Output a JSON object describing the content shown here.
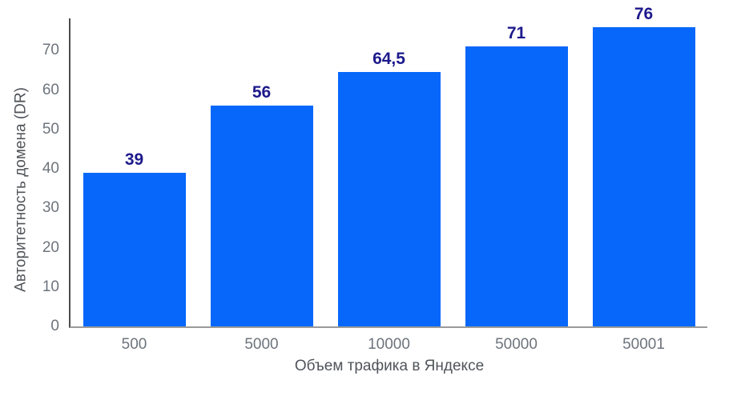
{
  "chart_data": {
    "type": "bar",
    "title": "",
    "xlabel": "Объем трафика в Яндексе",
    "ylabel": "Авторитетность домена (DR)",
    "categories": [
      "500",
      "5000",
      "10000",
      "50000",
      "50001"
    ],
    "values": [
      39,
      56,
      64.5,
      71,
      76
    ],
    "value_labels": [
      "39",
      "56",
      "64,5",
      "71",
      "76"
    ],
    "series": [
      {
        "name": "Авторитетность домена (DR)",
        "values": [
          39,
          56,
          64.5,
          71,
          76
        ]
      }
    ],
    "yticks": [
      0,
      10,
      20,
      30,
      40,
      50,
      60,
      70
    ],
    "ylim": [
      0,
      78.2
    ],
    "grid": false,
    "legend": false,
    "decimal_separator": ",",
    "colors": {
      "bar": "#0667FA",
      "value_label": "#1D1A8C",
      "tick_label": "#6D747C",
      "axis_title": "#50545A",
      "y_axis_line": "#4D4D4D",
      "x_axis_line": "#9A9A9A",
      "background": "#FFFFFF"
    }
  }
}
